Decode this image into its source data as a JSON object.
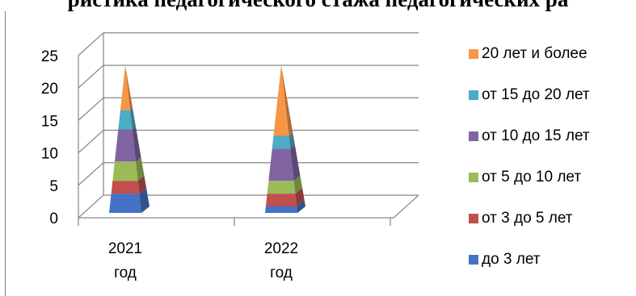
{
  "title": "ристика педагогического стажа педагогических ра",
  "chart_data": {
    "type": "bar",
    "style": "3d-stacked-pyramid",
    "categories": [
      "2021 год",
      "2022 год"
    ],
    "category_lines": [
      [
        "2021",
        "год"
      ],
      [
        "2022",
        "год"
      ]
    ],
    "series": [
      {
        "name": "до 3 лет",
        "color": "#4472c4",
        "values": [
          3,
          1
        ]
      },
      {
        "name": "от 3 до 5 лет",
        "color": "#c0504d",
        "values": [
          2,
          2
        ]
      },
      {
        "name": "от 5 до 10 лет",
        "color": "#9bbb59",
        "values": [
          3,
          2
        ]
      },
      {
        "name": "от 10 до 15 лет",
        "color": "#8064a2",
        "values": [
          5,
          5
        ]
      },
      {
        "name": "от 15 до 20 лет",
        "color": "#4bacc6",
        "values": [
          3,
          2
        ]
      },
      {
        "name": "20 лет и более",
        "color": "#f79646",
        "values": [
          7,
          11
        ]
      }
    ],
    "y_ticks": [
      "0",
      "5",
      "10",
      "15",
      "20",
      "25"
    ],
    "ylim": [
      0,
      25
    ],
    "grid": true,
    "legend_position": "right"
  }
}
